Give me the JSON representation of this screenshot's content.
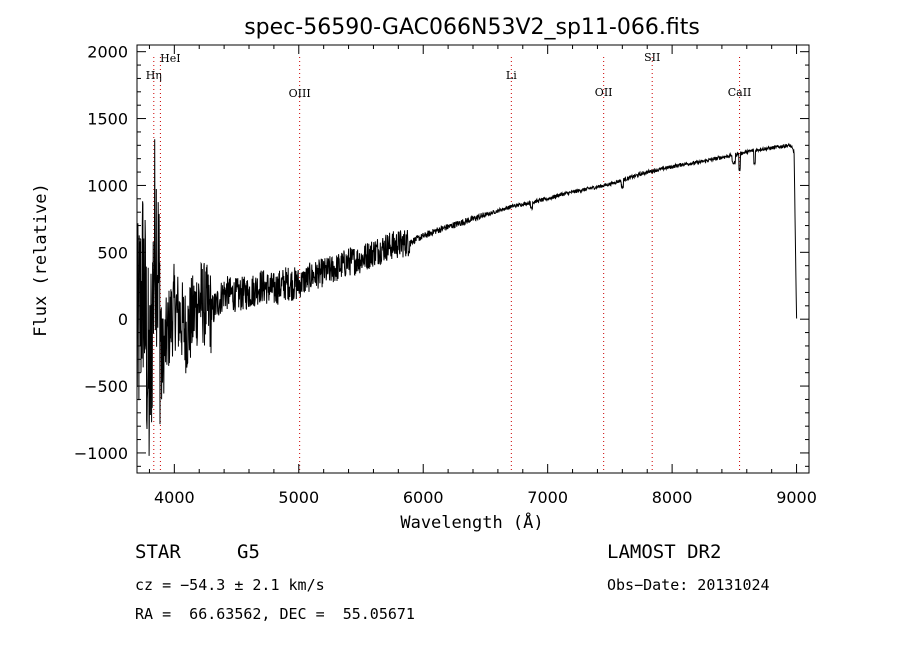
{
  "chart_data": {
    "type": "line",
    "title": "spec-56590-GAC066N53V2_sp11-066.fits",
    "xlabel": "Wavelength (Å)",
    "ylabel": "Flux (relative)",
    "xlim": [
      3700,
      9100
    ],
    "ylim": [
      -1150,
      2050
    ],
    "x_ticks": [
      4000,
      5000,
      6000,
      7000,
      8000,
      9000
    ],
    "y_ticks": [
      -1000,
      -500,
      0,
      500,
      1000,
      1500,
      2000
    ],
    "x_tick_labels": [
      "4000",
      "5000",
      "6000",
      "7000",
      "8000",
      "9000"
    ],
    "y_tick_labels": [
      "−1000",
      "−500",
      "0",
      "500",
      "1000",
      "1500",
      "2000"
    ],
    "grid": false,
    "line_color": "#000000",
    "marker_color": "#cc0000",
    "spectrum": {
      "x": [
        3700,
        3750,
        3800,
        3850,
        3900,
        4000,
        4100,
        4200,
        4300,
        4400,
        4500,
        4600,
        4700,
        4800,
        4900,
        5000,
        5100,
        5200,
        5300,
        5400,
        5500,
        5600,
        5700,
        5800,
        5900,
        6000,
        6100,
        6200,
        6300,
        6400,
        6500,
        6600,
        6700,
        6800,
        6900,
        7000,
        7100,
        7200,
        7300,
        7400,
        7500,
        7600,
        7700,
        7800,
        7900,
        8000,
        8100,
        8200,
        8300,
        8400,
        8500,
        8600,
        8700,
        8800,
        8900,
        8950,
        8980,
        9000
      ],
      "y": [
        -200,
        300,
        -600,
        800,
        -300,
        100,
        -100,
        150,
        50,
        200,
        180,
        200,
        250,
        220,
        270,
        260,
        320,
        350,
        380,
        430,
        450,
        500,
        540,
        560,
        580,
        620,
        660,
        690,
        720,
        750,
        780,
        810,
        840,
        860,
        880,
        900,
        930,
        950,
        970,
        990,
        1010,
        1040,
        1070,
        1100,
        1120,
        1140,
        1160,
        1170,
        1190,
        1210,
        1230,
        1250,
        1270,
        1280,
        1295,
        1300,
        1250,
        0
      ]
    },
    "lines": [
      {
        "name": "HeI",
        "x": 3888
      },
      {
        "name": "Hη",
        "x": 3835
      },
      {
        "name": "OIII",
        "x": 5007
      },
      {
        "name": "Li",
        "x": 6708
      },
      {
        "name": "OII",
        "x": 7450
      },
      {
        "name": "SII",
        "x": 7840
      },
      {
        "name": "CaII",
        "x": 8542
      }
    ]
  },
  "info": {
    "class": "STAR",
    "subclass": "G5",
    "survey": "LAMOST DR2",
    "cz": "cz = −54.3 ± 2.1 km/s",
    "obs_date": "Obs−Date: 20131024",
    "coords": "RA =  66.63562, DEC =  55.05671"
  }
}
